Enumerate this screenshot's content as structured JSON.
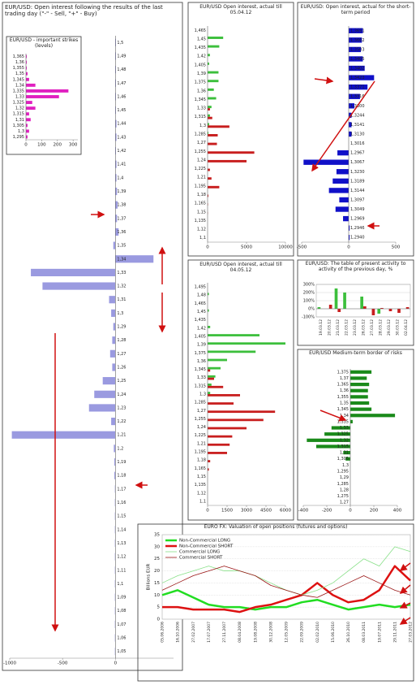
{
  "chart_data": [
    {
      "type": "bar",
      "horizontal": true,
      "title": "EUR/USD: Open interest following the results of the last trading day (\"-\" - Sell, \"+\" - Buy)",
      "categories": [
        "1,5",
        "1,49",
        "1,48",
        "1,47",
        "1,46",
        "1,45",
        "1,44",
        "1,43",
        "1,42",
        "1,41",
        "1,4",
        "1,39",
        "1,38",
        "1,37",
        "1,36",
        "1,35",
        "1,34",
        "1,33",
        "1,32",
        "1,31",
        "1,3",
        "1,29",
        "1,28",
        "1,27",
        "1,26",
        "1,25",
        "1,24",
        "1,23",
        "1,22",
        "1,21",
        "1,2",
        "1,19",
        "1,18",
        "1,17",
        "1,16",
        "1,15",
        "1,14",
        "1,13",
        "1,12",
        "1,11",
        "1,1",
        "1,09",
        "1,08",
        "1,07",
        "1,06",
        "1,05"
      ],
      "values": [
        5,
        5,
        5,
        5,
        5,
        5,
        10,
        10,
        5,
        10,
        10,
        15,
        20,
        15,
        30,
        -20,
        360,
        -800,
        -690,
        -60,
        -40,
        -20,
        -30,
        -50,
        -30,
        -120,
        -200,
        -250,
        -40,
        -980,
        -15,
        -10,
        -10,
        -5,
        -5,
        -5,
        -5,
        -5,
        -5,
        -5,
        -5,
        -5,
        -5,
        -5,
        -5,
        -5
      ],
      "color": "#9a9ae0",
      "xlim": [
        -1000,
        550
      ],
      "xticks": [
        -1000,
        -500,
        0
      ]
    },
    {
      "type": "bar",
      "horizontal": true,
      "title": "EUR/USD - important strikes (levels)",
      "categories": [
        "1,365",
        "1,36",
        "1,355",
        "1,35",
        "1,345",
        "1,34",
        "1,335",
        "1,33",
        "1,325",
        "1,32",
        "1,315",
        "1,31",
        "1,305",
        "1,3",
        "1,295"
      ],
      "values": [
        5,
        5,
        5,
        10,
        20,
        60,
        270,
        210,
        40,
        60,
        20,
        30,
        10,
        20,
        10
      ],
      "color": "#e020c0",
      "xlim": [
        0,
        330
      ],
      "xticks": [
        0,
        100,
        200,
        300
      ]
    },
    {
      "type": "bar",
      "horizontal": true,
      "title": "EUR/USD Open interest, actual till 05.04.12",
      "categories": [
        "1,465",
        "1,45",
        "1,435",
        "1,42",
        "1,405",
        "1,39",
        "1,375",
        "1,36",
        "1,345",
        "1,33",
        "1,315",
        "1,3",
        "1,285",
        "1,27",
        "1,255",
        "1,24",
        "1,225",
        "1,21",
        "1,195",
        "1,18",
        "1,165",
        "1,15",
        "1,135",
        "1,12",
        "1,1"
      ],
      "series": [
        {
          "color": "#3cbf3c",
          "values": [
            0,
            2000,
            1500,
            300,
            200,
            1400,
            1400,
            800,
            1100,
            500,
            300,
            200,
            100,
            0,
            0,
            0,
            0,
            0,
            0,
            0,
            0,
            0,
            0,
            0,
            0
          ]
        },
        {
          "color": "#c81e1e",
          "values": [
            0,
            0,
            0,
            0,
            0,
            0,
            0,
            0,
            0,
            300,
            600,
            2800,
            1300,
            1200,
            6000,
            5000,
            300,
            500,
            1500,
            100,
            50,
            30,
            0,
            0,
            0
          ]
        }
      ],
      "xlim": [
        0,
        10000
      ],
      "xticks": [
        0,
        5000,
        10000
      ]
    },
    {
      "type": "bar",
      "horizontal": true,
      "title": "EUR/USD: Open interest, actual for the short-term period",
      "categories": [
        "1,3651",
        "1,3602",
        "1,3503",
        "1,3405",
        "1,3402",
        "1,3423",
        "1,3371",
        "1,3316",
        "1,3300",
        "1,3244",
        "1,3141",
        "1,3130",
        "1,3016",
        "1,2967",
        "1,3067",
        "1,3230",
        "1,3189",
        "1,3144",
        "1,3097",
        "1,3049",
        "1,2969",
        "1,2946",
        "1,2940"
      ],
      "values": [
        150,
        140,
        130,
        150,
        170,
        270,
        200,
        120,
        60,
        30,
        30,
        30,
        0,
        -120,
        -480,
        -130,
        -170,
        -210,
        -100,
        -140,
        -60,
        10,
        10
      ],
      "color": "#1010c8",
      "xlim": [
        -500,
        500
      ],
      "xticks": [
        -500,
        0,
        500
      ]
    },
    {
      "type": "bar",
      "horizontal": true,
      "title": "EUR/USD Open interest, actual till 04.05.12",
      "categories": [
        "1,495",
        "1,48",
        "1,465",
        "1,45",
        "1,435",
        "1,42",
        "1,405",
        "1,39",
        "1,375",
        "1,36",
        "1,345",
        "1,33",
        "1,315",
        "1,3",
        "1,285",
        "1,27",
        "1,255",
        "1,24",
        "1,225",
        "1,21",
        "1,195",
        "1,18",
        "1,165",
        "1,15",
        "1,135",
        "1,12",
        "1,1"
      ],
      "series": [
        {
          "color": "#3cbf3c",
          "values": [
            0,
            100,
            0,
            100,
            0,
            200,
            4000,
            6000,
            3700,
            1500,
            1000,
            600,
            300,
            200,
            0,
            0,
            0,
            0,
            0,
            0,
            0,
            0,
            0,
            0,
            0,
            0,
            0
          ]
        },
        {
          "color": "#c81e1e",
          "values": [
            0,
            0,
            0,
            0,
            0,
            0,
            0,
            0,
            0,
            0,
            200,
            500,
            1200,
            2500,
            2000,
            5200,
            4300,
            3000,
            1900,
            1700,
            1500,
            200,
            100,
            0,
            0,
            0,
            0
          ]
        }
      ],
      "xlim": [
        0,
        6000
      ],
      "xticks": [
        0,
        1500,
        3000,
        4500,
        6000
      ]
    },
    {
      "type": "bar",
      "title": "EUR/USD: The table of present activity to activity of the previous day, %",
      "categories": [
        "19.03.12",
        "20.03.12",
        "21.03.12",
        "22.03.12",
        "23.03.12",
        "26.03.12",
        "27.03.12",
        "28.03.12",
        "29.03.12",
        "30.03.12",
        "02.04.12"
      ],
      "series": [
        {
          "color": "#3cbf3c",
          "values": [
            20,
            0,
            250,
            200,
            0,
            150,
            0,
            -60,
            0,
            0,
            0
          ]
        },
        {
          "color": "#c81e1e",
          "values": [
            0,
            50,
            -40,
            0,
            0,
            30,
            -80,
            10,
            -30,
            -50,
            20
          ]
        }
      ],
      "ylim": [
        -100,
        300
      ],
      "yticks": [
        {
          "value": 300,
          "label": "300%"
        },
        {
          "value": 200,
          "label": "200%"
        },
        {
          "value": 100,
          "label": "100%"
        },
        {
          "value": 0,
          "label": "0%"
        },
        {
          "value": -100,
          "label": "-100%"
        }
      ],
      "grid": true
    },
    {
      "type": "bar",
      "horizontal": true,
      "title": "EUR/USD Medium-term border of risks",
      "categories": [
        "1,375",
        "1,37",
        "1,365",
        "1,36",
        "1,355",
        "1,35",
        "1,345",
        "1,34",
        "1,335",
        "1,33",
        "1,325",
        "1,32",
        "1,315",
        "1,31",
        "1,305",
        "1,3",
        "1,295",
        "1,29",
        "1,285",
        "1,28",
        "1,275",
        "1,27"
      ],
      "values": [
        180,
        140,
        160,
        150,
        150,
        160,
        180,
        380,
        20,
        -160,
        -220,
        -370,
        -290,
        -60,
        -40,
        0,
        0,
        0,
        0,
        0,
        0,
        0
      ],
      "color": "#1a8a1a",
      "xlim": [
        -400,
        400
      ],
      "xticks": [
        -400,
        -200,
        0,
        200,
        400
      ]
    },
    {
      "type": "line",
      "title": "EURO FX: Valuation of open positions (futures and options)",
      "ylabel": "Billions EUR",
      "categories": [
        "05.06.2006",
        "16.10.2006",
        "27.02.2007",
        "17.07.2007",
        "27.11.2007",
        "08.04.2008",
        "19.08.2008",
        "30.12.2008",
        "12.05.2009",
        "22.09.2009",
        "02.02.2010",
        "15.06.2010",
        "26.10.2010",
        "08.03.2011",
        "19.07.2011",
        "29.11.2011",
        "27.03.2012"
      ],
      "series": [
        {
          "name": "Non-Commercial LONG",
          "color": "#22dd22",
          "width": 2.5,
          "values": [
            10,
            12,
            9,
            6,
            5,
            5,
            4,
            5,
            5,
            7,
            8,
            6,
            4,
            5,
            6,
            5,
            6
          ]
        },
        {
          "name": "Non-Commercial SHORT",
          "color": "#dd1111",
          "width": 2.5,
          "values": [
            5,
            5,
            4,
            4,
            4,
            3,
            5,
            6,
            8,
            10,
            15,
            10,
            7,
            8,
            12,
            22,
            16
          ]
        },
        {
          "name": "Commercial LONG",
          "color": "#88e088",
          "width": 0.8,
          "values": [
            15,
            18,
            20,
            22,
            20,
            20,
            18,
            15,
            12,
            10,
            12,
            15,
            20,
            25,
            22,
            30,
            28
          ]
        },
        {
          "name": "Commercial SHORT",
          "color": "#991515",
          "width": 0.8,
          "values": [
            12,
            15,
            18,
            20,
            22,
            20,
            18,
            14,
            12,
            10,
            9,
            12,
            15,
            18,
            15,
            12,
            10
          ]
        }
      ],
      "ylim": [
        0,
        35
      ],
      "yticks": [
        0,
        5,
        10,
        15,
        20,
        25,
        30,
        35
      ],
      "grid": true,
      "legend": "upper left"
    }
  ]
}
